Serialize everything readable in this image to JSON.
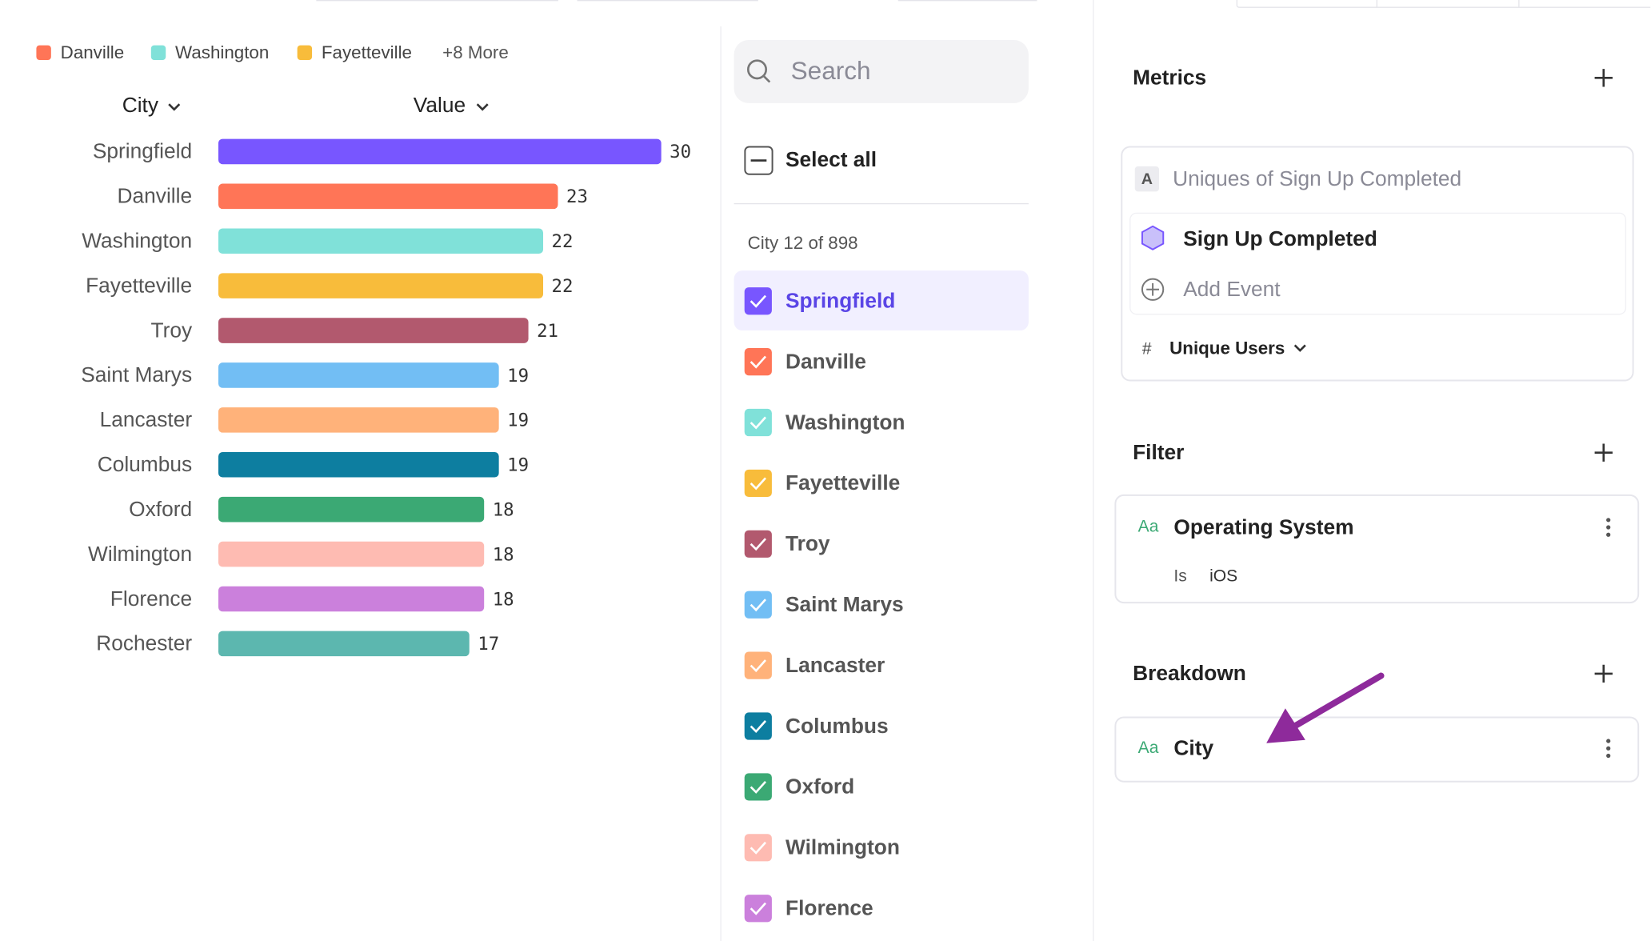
{
  "legend": {
    "items": [
      {
        "label": "Danville",
        "color": "#ff7557"
      },
      {
        "label": "Washington",
        "color": "#80e1d9"
      },
      {
        "label": "Fayetteville",
        "color": "#f8bc3b"
      }
    ],
    "more": "+8 More"
  },
  "chart": {
    "type": "bar",
    "headers": [
      "City",
      "Value"
    ],
    "categories": [
      "Springfield",
      "Danville",
      "Washington",
      "Fayetteville",
      "Troy",
      "Saint Marys",
      "Lancaster",
      "Columbus",
      "Oxford",
      "Wilmington",
      "Florence",
      "Rochester"
    ],
    "values": [
      30,
      23,
      22,
      22,
      21,
      19,
      19,
      19,
      18,
      18,
      18,
      17
    ],
    "colors": [
      "#7856ff",
      "#ff7557",
      "#80e1d9",
      "#f8bc3b",
      "#b2596e",
      "#72bef4",
      "#ffb27a",
      "#0d7ea0",
      "#3ba974",
      "#febbb2",
      "#cb80dc",
      "#5cb7af"
    ]
  },
  "list": {
    "search_placeholder": "Search",
    "select_all": "Select all",
    "count_label": "City 12 of 898",
    "items": [
      {
        "label": "Springfield",
        "color": "#7856ff",
        "selected": true
      },
      {
        "label": "Danville",
        "color": "#ff7557"
      },
      {
        "label": "Washington",
        "color": "#80e1d9"
      },
      {
        "label": "Fayetteville",
        "color": "#f8bc3b"
      },
      {
        "label": "Troy",
        "color": "#b2596e"
      },
      {
        "label": "Saint Marys",
        "color": "#72bef4"
      },
      {
        "label": "Lancaster",
        "color": "#ffb27a"
      },
      {
        "label": "Columbus",
        "color": "#0d7ea0"
      },
      {
        "label": "Oxford",
        "color": "#3ba974"
      },
      {
        "label": "Wilmington",
        "color": "#febbb2"
      },
      {
        "label": "Florence",
        "color": "#cb80dc"
      }
    ]
  },
  "panel": {
    "metrics": {
      "title": "Metrics",
      "badge": "A",
      "name": "Uniques of Sign Up Completed",
      "event": "Sign Up Completed",
      "add_event": "Add Event",
      "measure_icon": "#",
      "measure": "Unique Users"
    },
    "filter": {
      "title": "Filter",
      "type_icon": "Aa",
      "property": "Operating System",
      "operator": "Is",
      "value": "iOS"
    },
    "breakdown": {
      "title": "Breakdown",
      "type_icon": "Aa",
      "property": "City"
    }
  }
}
